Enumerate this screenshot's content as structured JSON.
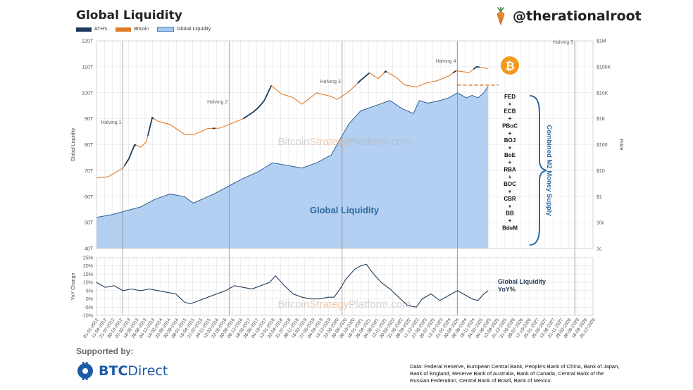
{
  "header": {
    "title": "Global Liquidity",
    "brand_handle": "@therationalroot"
  },
  "legend": [
    {
      "label": "ATH's",
      "color": "#1c3a5e"
    },
    {
      "label": "Bitcoin",
      "color": "#e07b2a"
    },
    {
      "label": "Global Liquidity",
      "color": "#a8c8f0"
    }
  ],
  "watermark": {
    "a": "Bitcoin",
    "b": "Strategy",
    "c": "Platform.com"
  },
  "footer": {
    "supported_by": "Supported by:",
    "sponsor_a": "BTC",
    "sponsor_b": "Direct",
    "source": "Data: Federal Reserve, European Central Bank, People's Bank of China, Bank of Japan, Bank of England, Reserve Bank of Australia, Bank of Canada, Central Bank of the Russian Federation, Central Bank of Brazil, Bank of Mexico."
  },
  "annotations": {
    "global_liquidity_label": "Global Liquidity",
    "combined_label": "Combined M2 Money Supply",
    "central_banks": [
      "FED",
      "+",
      "ECB",
      "+",
      "PBoC",
      "+",
      "BOJ",
      "+",
      "BoE",
      "+",
      "RBA",
      "+",
      "BOC",
      "+",
      "CBR",
      "+",
      "BB",
      "+",
      "BdeM"
    ],
    "yoy_label_1": "Global Liquidity",
    "yoy_label_2": "YoY%"
  },
  "chart_data": [
    {
      "type": "area",
      "name": "main",
      "ylabel": "Global Liquidity",
      "y2label": "Price",
      "ylim": [
        40,
        120
      ],
      "yticks": [
        "40T",
        "50T",
        "60T",
        "70T",
        "80T",
        "90T",
        "100T",
        "110T",
        "120T"
      ],
      "y2ticks": [
        "1c",
        "10c",
        "$1",
        "$10",
        "$100",
        "$1K",
        "$10K",
        "$100K",
        "$1M"
      ],
      "y2_scale": "log",
      "xlim": [
        2012.0,
        2028.92
      ],
      "halvings": [
        {
          "label": "Halving 1",
          "x": 2012.9
        },
        {
          "label": "Halving 2",
          "x": 2016.52
        },
        {
          "label": "Halving 3",
          "x": 2020.37
        },
        {
          "label": "Halving 4",
          "x": 2024.3
        },
        {
          "label": "Halving 5",
          "x": 2028.3
        }
      ],
      "series": [
        {
          "name": "Global Liquidity",
          "x": [
            2012.0,
            2012.5,
            2013.0,
            2013.5,
            2014.0,
            2014.5,
            2015.0,
            2015.3,
            2015.6,
            2016.0,
            2016.5,
            2017.0,
            2017.5,
            2018.0,
            2018.5,
            2019.0,
            2019.5,
            2020.0,
            2020.3,
            2020.6,
            2021.0,
            2021.5,
            2022.0,
            2022.4,
            2022.8,
            2023.0,
            2023.3,
            2023.7,
            2024.0,
            2024.3,
            2024.6,
            2024.8,
            2025.0,
            2025.2,
            2025.35
          ],
          "values": [
            52,
            53,
            54.5,
            56,
            59,
            61,
            60,
            57.5,
            59,
            61,
            64,
            67,
            69.5,
            73,
            72,
            71,
            73,
            76,
            82,
            88,
            93,
            95,
            97,
            94,
            92,
            97,
            96,
            97,
            98,
            100,
            98,
            99,
            98,
            100,
            102.5
          ]
        },
        {
          "name": "Bitcoin",
          "x": [
            2012.0,
            2012.4,
            2012.9,
            2013.1,
            2013.3,
            2013.5,
            2013.7,
            2013.9,
            2014.1,
            2014.5,
            2015.0,
            2015.3,
            2015.8,
            2016.2,
            2016.6,
            2017.0,
            2017.4,
            2017.7,
            2017.96,
            2018.3,
            2018.7,
            2019.0,
            2019.5,
            2020.0,
            2020.2,
            2020.6,
            2021.0,
            2021.3,
            2021.6,
            2021.85,
            2022.2,
            2022.5,
            2022.9,
            2023.2,
            2023.6,
            2024.0,
            2024.25,
            2024.7,
            2024.95,
            2025.1,
            2025.35
          ],
          "values": [
            5.2,
            5.8,
            12.5,
            28,
            100,
            80,
            130,
            1100,
            800,
            600,
            250,
            240,
            420,
            430,
            650,
            1000,
            2000,
            4500,
            19000,
            9000,
            6500,
            3600,
            10000,
            7200,
            5500,
            11000,
            30000,
            58000,
            35000,
            67000,
            40000,
            20000,
            16500,
            23000,
            29000,
            44000,
            70000,
            60000,
            100000,
            95000,
            85000
          ],
          "ath_ranges": [
            [
              2012.95,
              2013.35
            ],
            [
              2013.75,
              2013.95
            ],
            [
              2015.95,
              2016.05
            ],
            [
              2017.0,
              2017.96
            ],
            [
              2020.9,
              2021.3
            ],
            [
              2021.8,
              2021.9
            ],
            [
              2024.15,
              2024.25
            ],
            [
              2024.85,
              2025.05
            ]
          ]
        }
      ],
      "projection": {
        "value": 100000,
        "x_range": [
          2024.3,
          2025.7
        ]
      }
    },
    {
      "type": "line",
      "name": "yoy",
      "ylabel": "YoY Change",
      "ylim": [
        -10,
        25
      ],
      "yticks": [
        "-10%",
        "-5%",
        "0%",
        "5%",
        "10%",
        "15%",
        "20%",
        "25%"
      ],
      "series": [
        {
          "name": "Global Liquidity YoY%",
          "x": [
            2012.0,
            2012.3,
            2012.6,
            2012.9,
            2013.2,
            2013.5,
            2013.8,
            2014.1,
            2014.4,
            2014.7,
            2015.0,
            2015.2,
            2015.5,
            2015.8,
            2016.1,
            2016.4,
            2016.7,
            2017.0,
            2017.3,
            2017.6,
            2017.9,
            2018.1,
            2018.4,
            2018.7,
            2019.0,
            2019.3,
            2019.6,
            2019.9,
            2020.1,
            2020.3,
            2020.5,
            2020.8,
            2021.0,
            2021.2,
            2021.4,
            2021.7,
            2022.0,
            2022.3,
            2022.6,
            2022.9,
            2023.1,
            2023.4,
            2023.7,
            2024.0,
            2024.3,
            2024.6,
            2024.8,
            2025.0,
            2025.2,
            2025.35
          ],
          "values": [
            10,
            7,
            8,
            5,
            6,
            5,
            6,
            5,
            4,
            3,
            -2,
            -3,
            -1,
            1,
            3,
            5,
            8,
            7,
            6,
            8,
            10,
            14,
            8,
            3,
            1,
            0,
            0,
            1,
            1,
            6,
            12,
            18,
            20,
            21,
            16,
            10,
            6,
            1,
            -4,
            -5,
            0,
            3,
            -1,
            2,
            5,
            2,
            0,
            -1,
            3,
            5
          ]
        }
      ],
      "x_tick_labels": [
        "01-01-2012",
        "11-04-2012",
        "21-07-2012",
        "30-10-2012",
        "07-02-2013",
        "18-05-2013",
        "26-08-2013",
        "04-12-2013",
        "14-03-2014",
        "22-06-2014",
        "30-09-2014",
        "08-01-2015",
        "18-04-2015",
        "27-07-2015",
        "04-11-2015",
        "12-02-2016",
        "22-05-2016",
        "30-08-2016",
        "08-12-2016",
        "18-03-2017",
        "26-06-2017",
        "04-10-2017",
        "12-01-2018",
        "22-04-2018",
        "31-07-2018",
        "08-11-2018",
        "16-02-2019",
        "27-05-2019",
        "04-09-2019",
        "13-12-2019",
        "22-03-2020",
        "30-06-2020",
        "08-10-2020",
        "16-01-2021",
        "26-04-2021",
        "04-08-2021",
        "12-11-2021",
        "20-02-2022",
        "31-05-2022",
        "08-09-2022",
        "17-12-2022",
        "27-03-2023",
        "05-07-2023",
        "13-10-2023",
        "21-01-2024",
        "30-04-2024",
        "08-08-2024",
        "16-11-2024",
        "24-02-2025",
        "04-06-2025",
        "12-09-2025",
        "21-12-2025",
        "31-03-2026",
        "09-07-2026",
        "17-10-2026",
        "25-01-2027",
        "05-05-2027",
        "13-08-2027",
        "21-11-2027",
        "29-02-2028",
        "08-06-2028",
        "16-09-2028",
        "25-12-2028"
      ]
    }
  ]
}
